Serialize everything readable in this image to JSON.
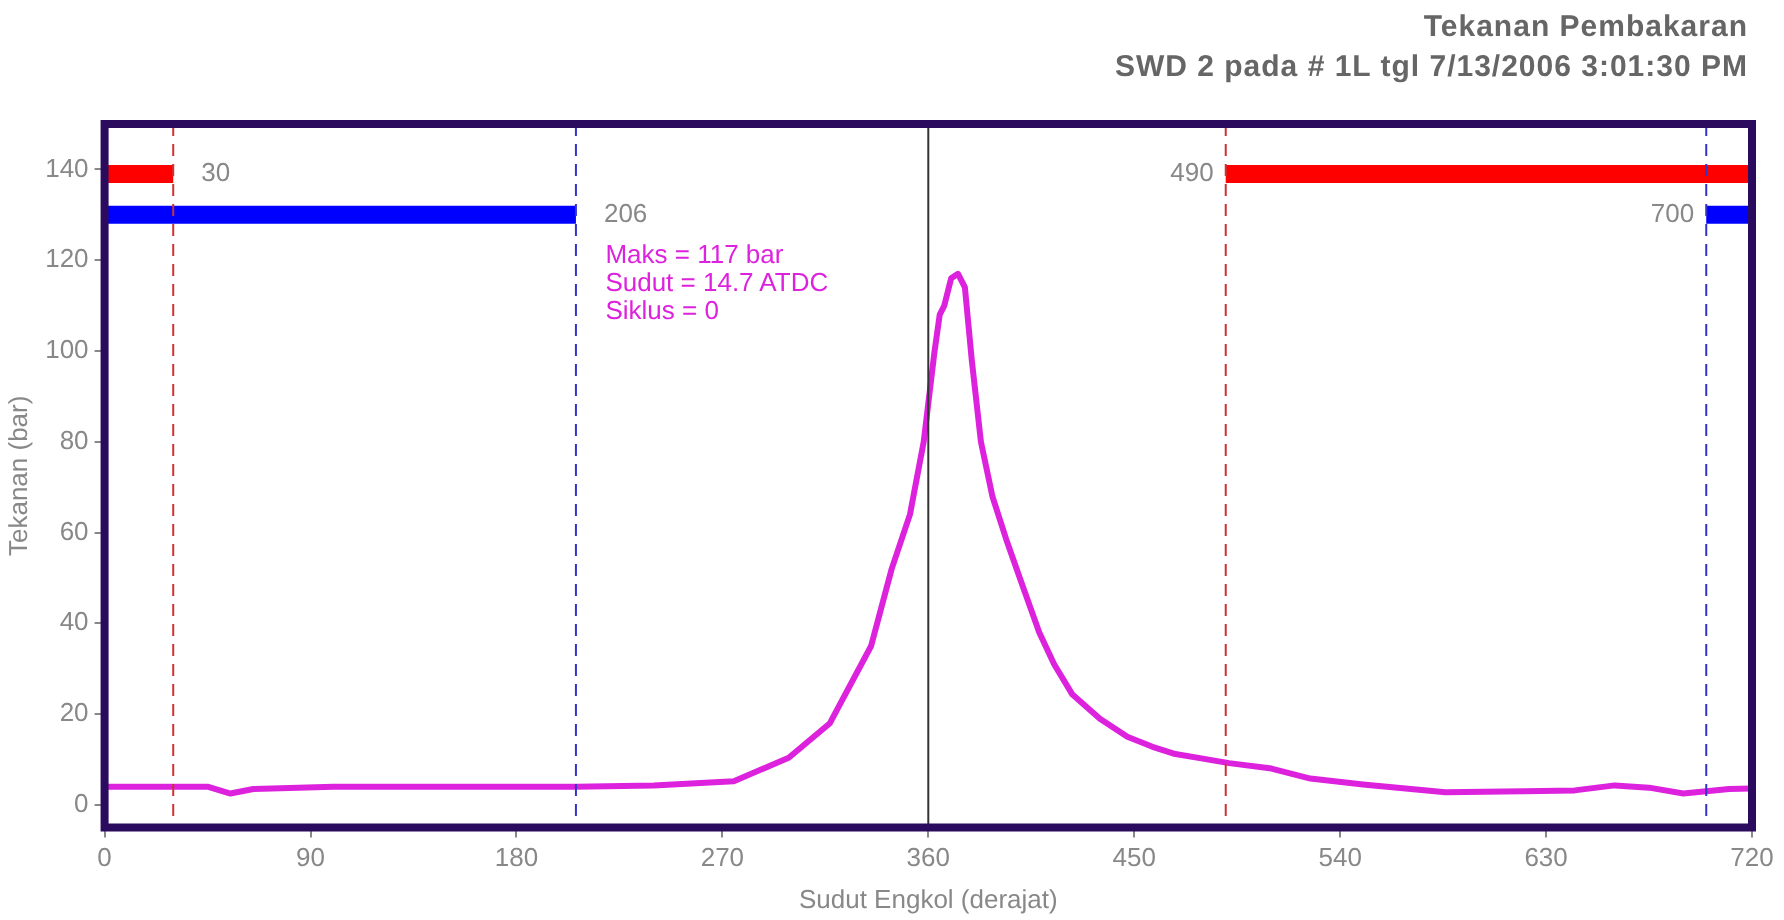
{
  "chart_data": {
    "type": "line",
    "title": "Tekanan Pembakaran",
    "subtitle": "SWD 2 pada # 1L tgl 7/13/2006 3:01:30 PM",
    "xlabel": "Sudut Engkol (derajat)",
    "ylabel": "Tekanan (bar)",
    "xlim": [
      0,
      720
    ],
    "xticks": [
      0,
      90,
      180,
      270,
      360,
      450,
      540,
      630,
      720
    ],
    "ylim": [
      -5,
      150
    ],
    "yticks": [
      0,
      20,
      40,
      60,
      80,
      100,
      120,
      140
    ],
    "grid": false,
    "legend": false,
    "marker": "none",
    "line_style": "solid",
    "series": [
      {
        "color": "#dd22dd",
        "x": [
          0,
          20,
          45,
          55,
          65,
          100,
          150,
          206,
          240,
          275,
          299,
          317,
          335,
          344,
          352,
          358,
          362.7,
          365,
          367,
          370,
          373,
          376,
          379,
          383,
          388,
          394,
          400,
          408.5,
          415,
          423,
          435,
          447,
          458,
          468,
          480,
          491.5,
          510,
          527,
          550,
          586,
          620,
          642.5,
          660,
          675,
          690,
          700,
          710,
          720
        ],
        "values": [
          4,
          4,
          4,
          2.5,
          3.5,
          4,
          4,
          4,
          4.3,
          5.2,
          10.4,
          18,
          35,
          52,
          64,
          80,
          99.8,
          108,
          110,
          116,
          117,
          114,
          98,
          80,
          68,
          58.6,
          50,
          38,
          31,
          24.3,
          19,
          15,
          12.8,
          11.2,
          10.2,
          9.2,
          8,
          5.8,
          4.5,
          2.8,
          3,
          3.2,
          4.3,
          3.8,
          2.5,
          3,
          3.5,
          3.6
        ]
      },
      {
        "color": "#ff0000",
        "x": [
          0,
          30
        ],
        "values": [
          139,
          139
        ]
      },
      {
        "color": "#0000ff",
        "x": [
          0,
          206
        ],
        "values": [
          130,
          130
        ]
      },
      {
        "color": "#ff0000",
        "x": [
          490,
          720
        ],
        "values": [
          139,
          139
        ]
      },
      {
        "color": "#0000ff",
        "x": [
          700,
          720
        ],
        "values": [
          130,
          130
        ]
      }
    ],
    "ref_lines": [
      {
        "axis": "x",
        "value": 30,
        "color": "#cc3333",
        "line_style": "dashed"
      },
      {
        "axis": "x",
        "value": 206,
        "color": "#3333cc",
        "line_style": "dashed"
      },
      {
        "axis": "x",
        "value": 360,
        "color": "#333333",
        "line_style": "solid"
      },
      {
        "axis": "x",
        "value": 490,
        "color": "#cc3333",
        "line_style": "dashed"
      },
      {
        "axis": "x",
        "value": 700,
        "color": "#3333cc",
        "line_style": "dashed"
      }
    ],
    "annotations": [
      {
        "text": "30",
        "x": 30,
        "y": 139
      },
      {
        "text": "206",
        "x": 206,
        "y": 130
      },
      {
        "text": "490",
        "x": 490,
        "y": 139
      },
      {
        "text": "700",
        "x": 700,
        "y": 130
      },
      "Maks = 117 bar",
      "Sudut = 14.7 ATDC",
      "Siklus = 0"
    ]
  }
}
